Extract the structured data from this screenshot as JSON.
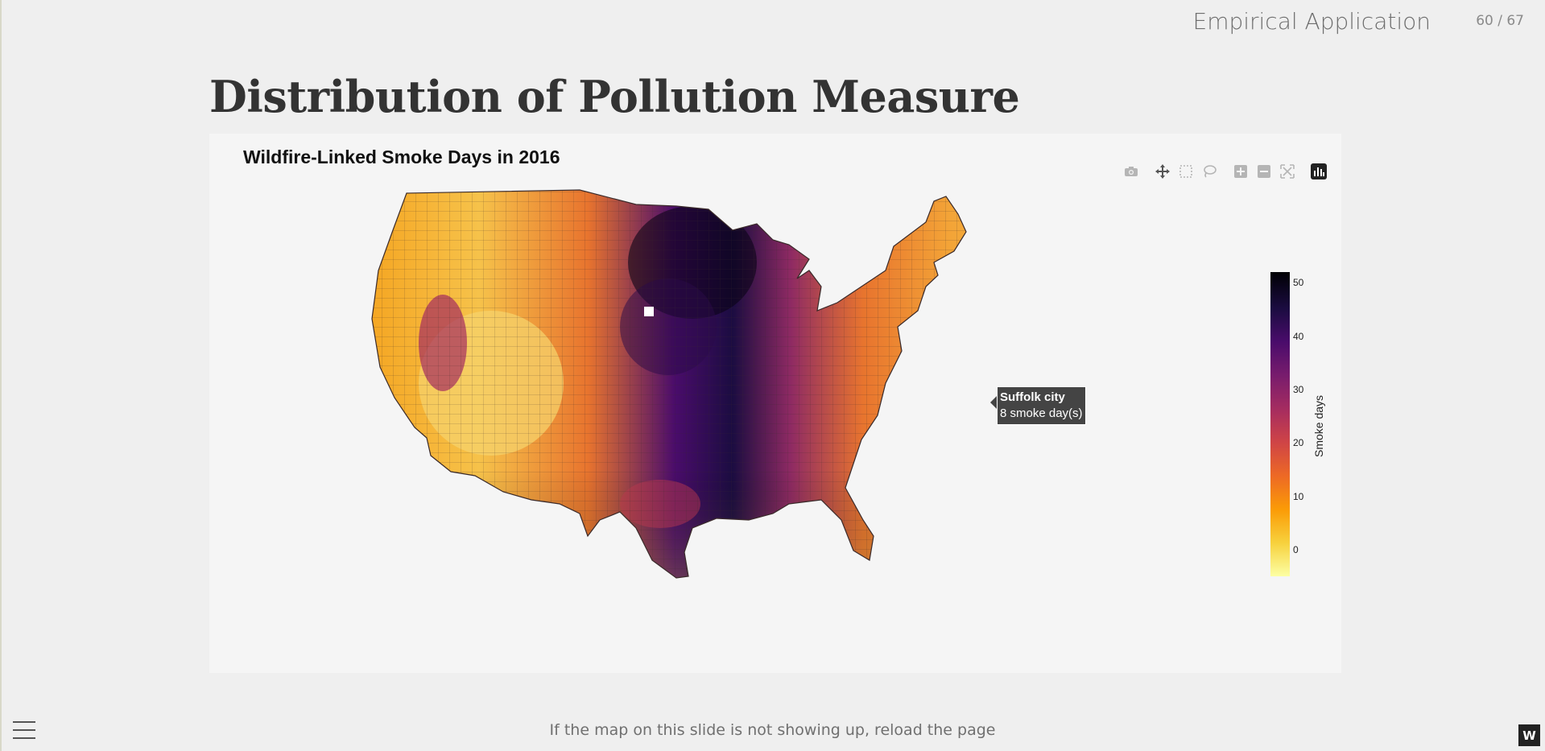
{
  "header": {
    "section_title": "Empirical Application",
    "slide_counter": "60 / 67"
  },
  "page_title": "Distribution of Pollution Measure",
  "plot": {
    "title": "Wildfire-Linked Smoke Days in 2016",
    "modebar": [
      "camera-icon",
      "pan-icon",
      "box-select-icon",
      "lasso-icon",
      "zoom-in-icon",
      "zoom-out-icon",
      "autoscale-icon",
      "plotly-logo-icon"
    ],
    "tooltip": {
      "name": "Suffolk city",
      "value": "8 smoke day(s)"
    },
    "colorbar": {
      "title": "Smoke days",
      "ticks": [
        "0",
        "10",
        "20",
        "30",
        "40",
        "50"
      ],
      "colors": [
        "#fcffa4",
        "#f7d13d",
        "#fb9b06",
        "#ed6925",
        "#cf4446",
        "#a52c60",
        "#781c6d",
        "#4a0c6b",
        "#1b0c41",
        "#000004"
      ]
    }
  },
  "chart_data": {
    "type": "choropleth",
    "title": "Wildfire-Linked Smoke Days in 2016",
    "colorbar_title": "Smoke days",
    "colorbar_range": [
      -5,
      52
    ],
    "colorbar_ticks": [
      0,
      10,
      20,
      30,
      40,
      50
    ],
    "colorscale": "inferno (reversed)",
    "hover_example": {
      "name": "Suffolk city",
      "value": 8
    }
  },
  "footer_note": "If the map on this slide is not showing up, reload the page"
}
